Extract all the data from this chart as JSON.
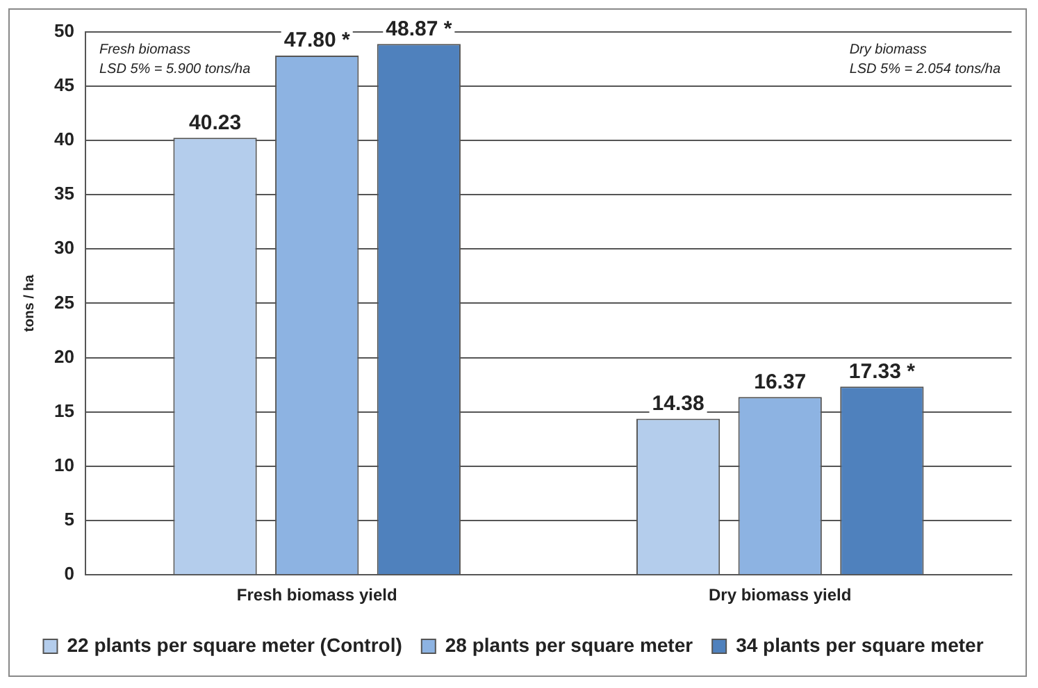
{
  "chart_data": {
    "type": "bar",
    "ylabel": "tons / ha",
    "categories": [
      "Fresh biomass yield",
      "Dry biomass yield"
    ],
    "series": [
      {
        "name": "22 plants per square meter (Control)",
        "color": "#b4cdec",
        "values": [
          40.23,
          14.38
        ],
        "value_labels": [
          "40.23",
          "14.38"
        ]
      },
      {
        "name": "28 plants per square meter",
        "color": "#8db3e2",
        "values": [
          47.8,
          16.37
        ],
        "value_labels": [
          "47.80 *",
          "16.37"
        ]
      },
      {
        "name": "34 plants per square meter",
        "color": "#4f81bd",
        "values": [
          48.87,
          17.33
        ],
        "value_labels": [
          "48.87 *",
          "17.33 *"
        ]
      }
    ],
    "ylim": [
      0,
      50
    ],
    "yticks": [
      0,
      5,
      10,
      15,
      20,
      25,
      30,
      35,
      40,
      45,
      50
    ],
    "grid": "y",
    "legend": "bottom",
    "annotations": [
      "Fresh biomass\nLSD 5% = 5.900 tons/ha",
      "Dry biomass\nLSD 5% = 2.054 tons/ha"
    ]
  }
}
